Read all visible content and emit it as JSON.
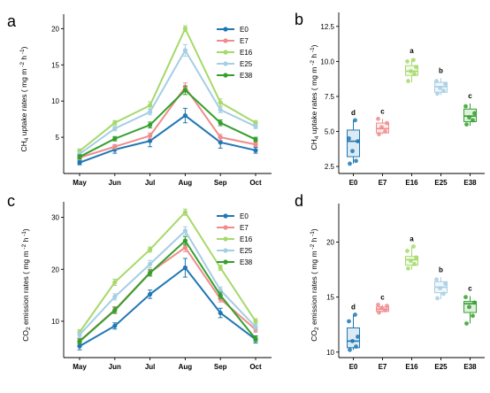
{
  "colors": {
    "E0": "#1f77b4",
    "E7": "#f08c8c",
    "E16": "#a6d96a",
    "E25": "#a6cee3",
    "E38": "#33a02c"
  },
  "chart_data": [
    {
      "panel": "a",
      "type": "line",
      "ylabel_parts": {
        "pre": "CH",
        "sub": "4",
        "main": " uptake rates ( mg m",
        "sup1": " -2",
        "mid": " h",
        "sup2": " -1",
        "post": ")"
      },
      "categories": [
        "May",
        "Jun",
        "Jul",
        "Aug",
        "Sep",
        "Oct"
      ],
      "ylim": [
        0,
        22
      ],
      "yticks": [
        5,
        10,
        15,
        20
      ],
      "legend_position": "top-right",
      "series": [
        {
          "name": "E0",
          "values": [
            1.5,
            3.3,
            4.5,
            8.0,
            4.3,
            3.2
          ],
          "err": [
            0.3,
            0.5,
            0.8,
            1.0,
            0.8,
            0.4
          ]
        },
        {
          "name": "E7",
          "values": [
            2.2,
            3.7,
            5.2,
            11.9,
            5.0,
            4.0
          ],
          "err": [
            0.3,
            0.3,
            0.4,
            0.6,
            0.4,
            0.3
          ]
        },
        {
          "name": "E16",
          "values": [
            3.1,
            7.0,
            9.4,
            20.0,
            9.8,
            7.0
          ],
          "err": [
            0.3,
            0.3,
            0.5,
            0.4,
            0.5,
            0.3
          ]
        },
        {
          "name": "E25",
          "values": [
            2.7,
            6.2,
            8.5,
            17.0,
            8.8,
            6.5
          ],
          "err": [
            0.3,
            0.3,
            0.4,
            0.8,
            0.4,
            0.3
          ]
        },
        {
          "name": "E38",
          "values": [
            2.3,
            4.8,
            6.7,
            11.5,
            7.0,
            4.7
          ],
          "err": [
            0.3,
            0.3,
            0.4,
            0.6,
            0.4,
            0.3
          ]
        }
      ]
    },
    {
      "panel": "b",
      "type": "box",
      "ylabel_parts": {
        "pre": "CH",
        "sub": "4",
        "main": " uptake rates ( mg m",
        "sup1": " -2",
        "mid": " h",
        "sup2": " -1",
        "post": ")"
      },
      "categories": [
        "E0",
        "E7",
        "E16",
        "E25",
        "E38"
      ],
      "ylim": [
        2.0,
        13.5
      ],
      "yticks": [
        2.5,
        5.0,
        7.5,
        10.0,
        12.5
      ],
      "ytick_labels": [
        "2.5",
        "5.0",
        "7.5",
        "10.0",
        "12.5"
      ],
      "boxes": [
        {
          "group": "E0",
          "min": 2.7,
          "q1": 3.2,
          "median": 4.3,
          "q3": 5.1,
          "max": 5.8,
          "points": [
            2.7,
            2.9,
            3.6,
            4.3,
            4.5,
            5.8
          ],
          "letter": "d"
        },
        {
          "group": "E7",
          "min": 4.8,
          "q1": 4.9,
          "median": 5.2,
          "q3": 5.6,
          "max": 5.9,
          "points": [
            4.8,
            5.0,
            5.3,
            5.6,
            5.9
          ],
          "letter": "c"
        },
        {
          "group": "E16",
          "min": 8.5,
          "q1": 9.0,
          "median": 9.3,
          "q3": 9.7,
          "max": 10.2,
          "points": [
            8.6,
            9.1,
            9.3,
            9.6,
            10.0,
            10.1
          ],
          "letter": "a"
        },
        {
          "group": "E25",
          "min": 7.6,
          "q1": 7.8,
          "median": 8.2,
          "q3": 8.5,
          "max": 8.8,
          "points": [
            7.7,
            7.9,
            8.1,
            8.4,
            8.6
          ],
          "letter": "b"
        },
        {
          "group": "E38",
          "min": 5.4,
          "q1": 5.7,
          "median": 6.1,
          "q3": 6.6,
          "max": 7.0,
          "points": [
            5.5,
            5.8,
            6.0,
            6.3,
            6.8
          ],
          "letter": "c"
        }
      ]
    },
    {
      "panel": "c",
      "type": "line",
      "ylabel_parts": {
        "pre": "CO",
        "sub": "2",
        "main": " emission rates ( mg m",
        "sup1": " -2",
        "mid": " h",
        "sup2": " -1",
        "post": ")"
      },
      "categories": [
        "May",
        "Jun",
        "Jul",
        "Aug",
        "Sep",
        "Oct"
      ],
      "ylim": [
        3,
        33
      ],
      "yticks": [
        10,
        20,
        30
      ],
      "legend_position": "top-right",
      "series": [
        {
          "name": "E0",
          "values": [
            5.2,
            9.1,
            15.2,
            20.3,
            11.6,
            6.5
          ],
          "err": [
            0.7,
            0.6,
            0.8,
            1.8,
            0.9,
            0.7
          ]
        },
        {
          "name": "E7",
          "values": [
            6.2,
            12.2,
            19.4,
            24.2,
            14.3,
            8.4
          ],
          "err": [
            0.5,
            0.6,
            0.6,
            0.8,
            0.6,
            0.5
          ]
        },
        {
          "name": "E16",
          "values": [
            7.9,
            17.5,
            23.8,
            31.0,
            20.3,
            10.0
          ],
          "err": [
            0.5,
            0.6,
            0.5,
            0.6,
            0.5,
            0.5
          ]
        },
        {
          "name": "E25",
          "values": [
            7.4,
            14.7,
            21.0,
            27.4,
            16.0,
            8.9
          ],
          "err": [
            0.5,
            0.6,
            0.7,
            0.8,
            0.6,
            0.5
          ]
        },
        {
          "name": "E38",
          "values": [
            6.1,
            12.1,
            19.3,
            25.5,
            15.0,
            6.6
          ],
          "err": [
            0.5,
            0.6,
            0.6,
            0.8,
            0.6,
            0.5
          ]
        }
      ]
    },
    {
      "panel": "d",
      "type": "box",
      "ylabel_parts": {
        "pre": "CO",
        "sub": "2",
        "main": " emission rates ( mg m",
        "sup1": " -2",
        "mid": " h",
        "sup2": " -1",
        "post": ")"
      },
      "categories": [
        "E0",
        "E7",
        "E16",
        "E25",
        "E38"
      ],
      "ylim": [
        9.5,
        23.5
      ],
      "yticks": [
        10,
        15,
        20
      ],
      "ytick_labels": [
        "10",
        "15",
        "20"
      ],
      "boxes": [
        {
          "group": "E0",
          "min": 10.2,
          "q1": 10.4,
          "median": 11.0,
          "q3": 12.2,
          "max": 13.4,
          "points": [
            10.2,
            10.5,
            11.0,
            11.4,
            12.8,
            13.4
          ],
          "letter": "d"
        },
        {
          "group": "E7",
          "min": 13.6,
          "q1": 13.7,
          "median": 13.9,
          "q3": 14.1,
          "max": 14.3,
          "points": [
            13.6,
            13.8,
            14.0,
            14.2,
            14.3
          ],
          "letter": "c"
        },
        {
          "group": "E16",
          "min": 17.5,
          "q1": 17.9,
          "median": 18.4,
          "q3": 18.7,
          "max": 19.6,
          "points": [
            17.6,
            18.0,
            18.3,
            18.6,
            19.2,
            19.6
          ],
          "letter": "a"
        },
        {
          "group": "E25",
          "min": 14.8,
          "q1": 15.4,
          "median": 15.9,
          "q3": 16.4,
          "max": 16.8,
          "points": [
            14.9,
            15.3,
            15.8,
            16.2,
            16.6
          ],
          "letter": "b"
        },
        {
          "group": "E38",
          "min": 12.6,
          "q1": 13.6,
          "median": 14.4,
          "q3": 14.6,
          "max": 15.1,
          "points": [
            12.6,
            13.3,
            14.1,
            14.5,
            15.0
          ],
          "letter": "c"
        }
      ]
    }
  ]
}
